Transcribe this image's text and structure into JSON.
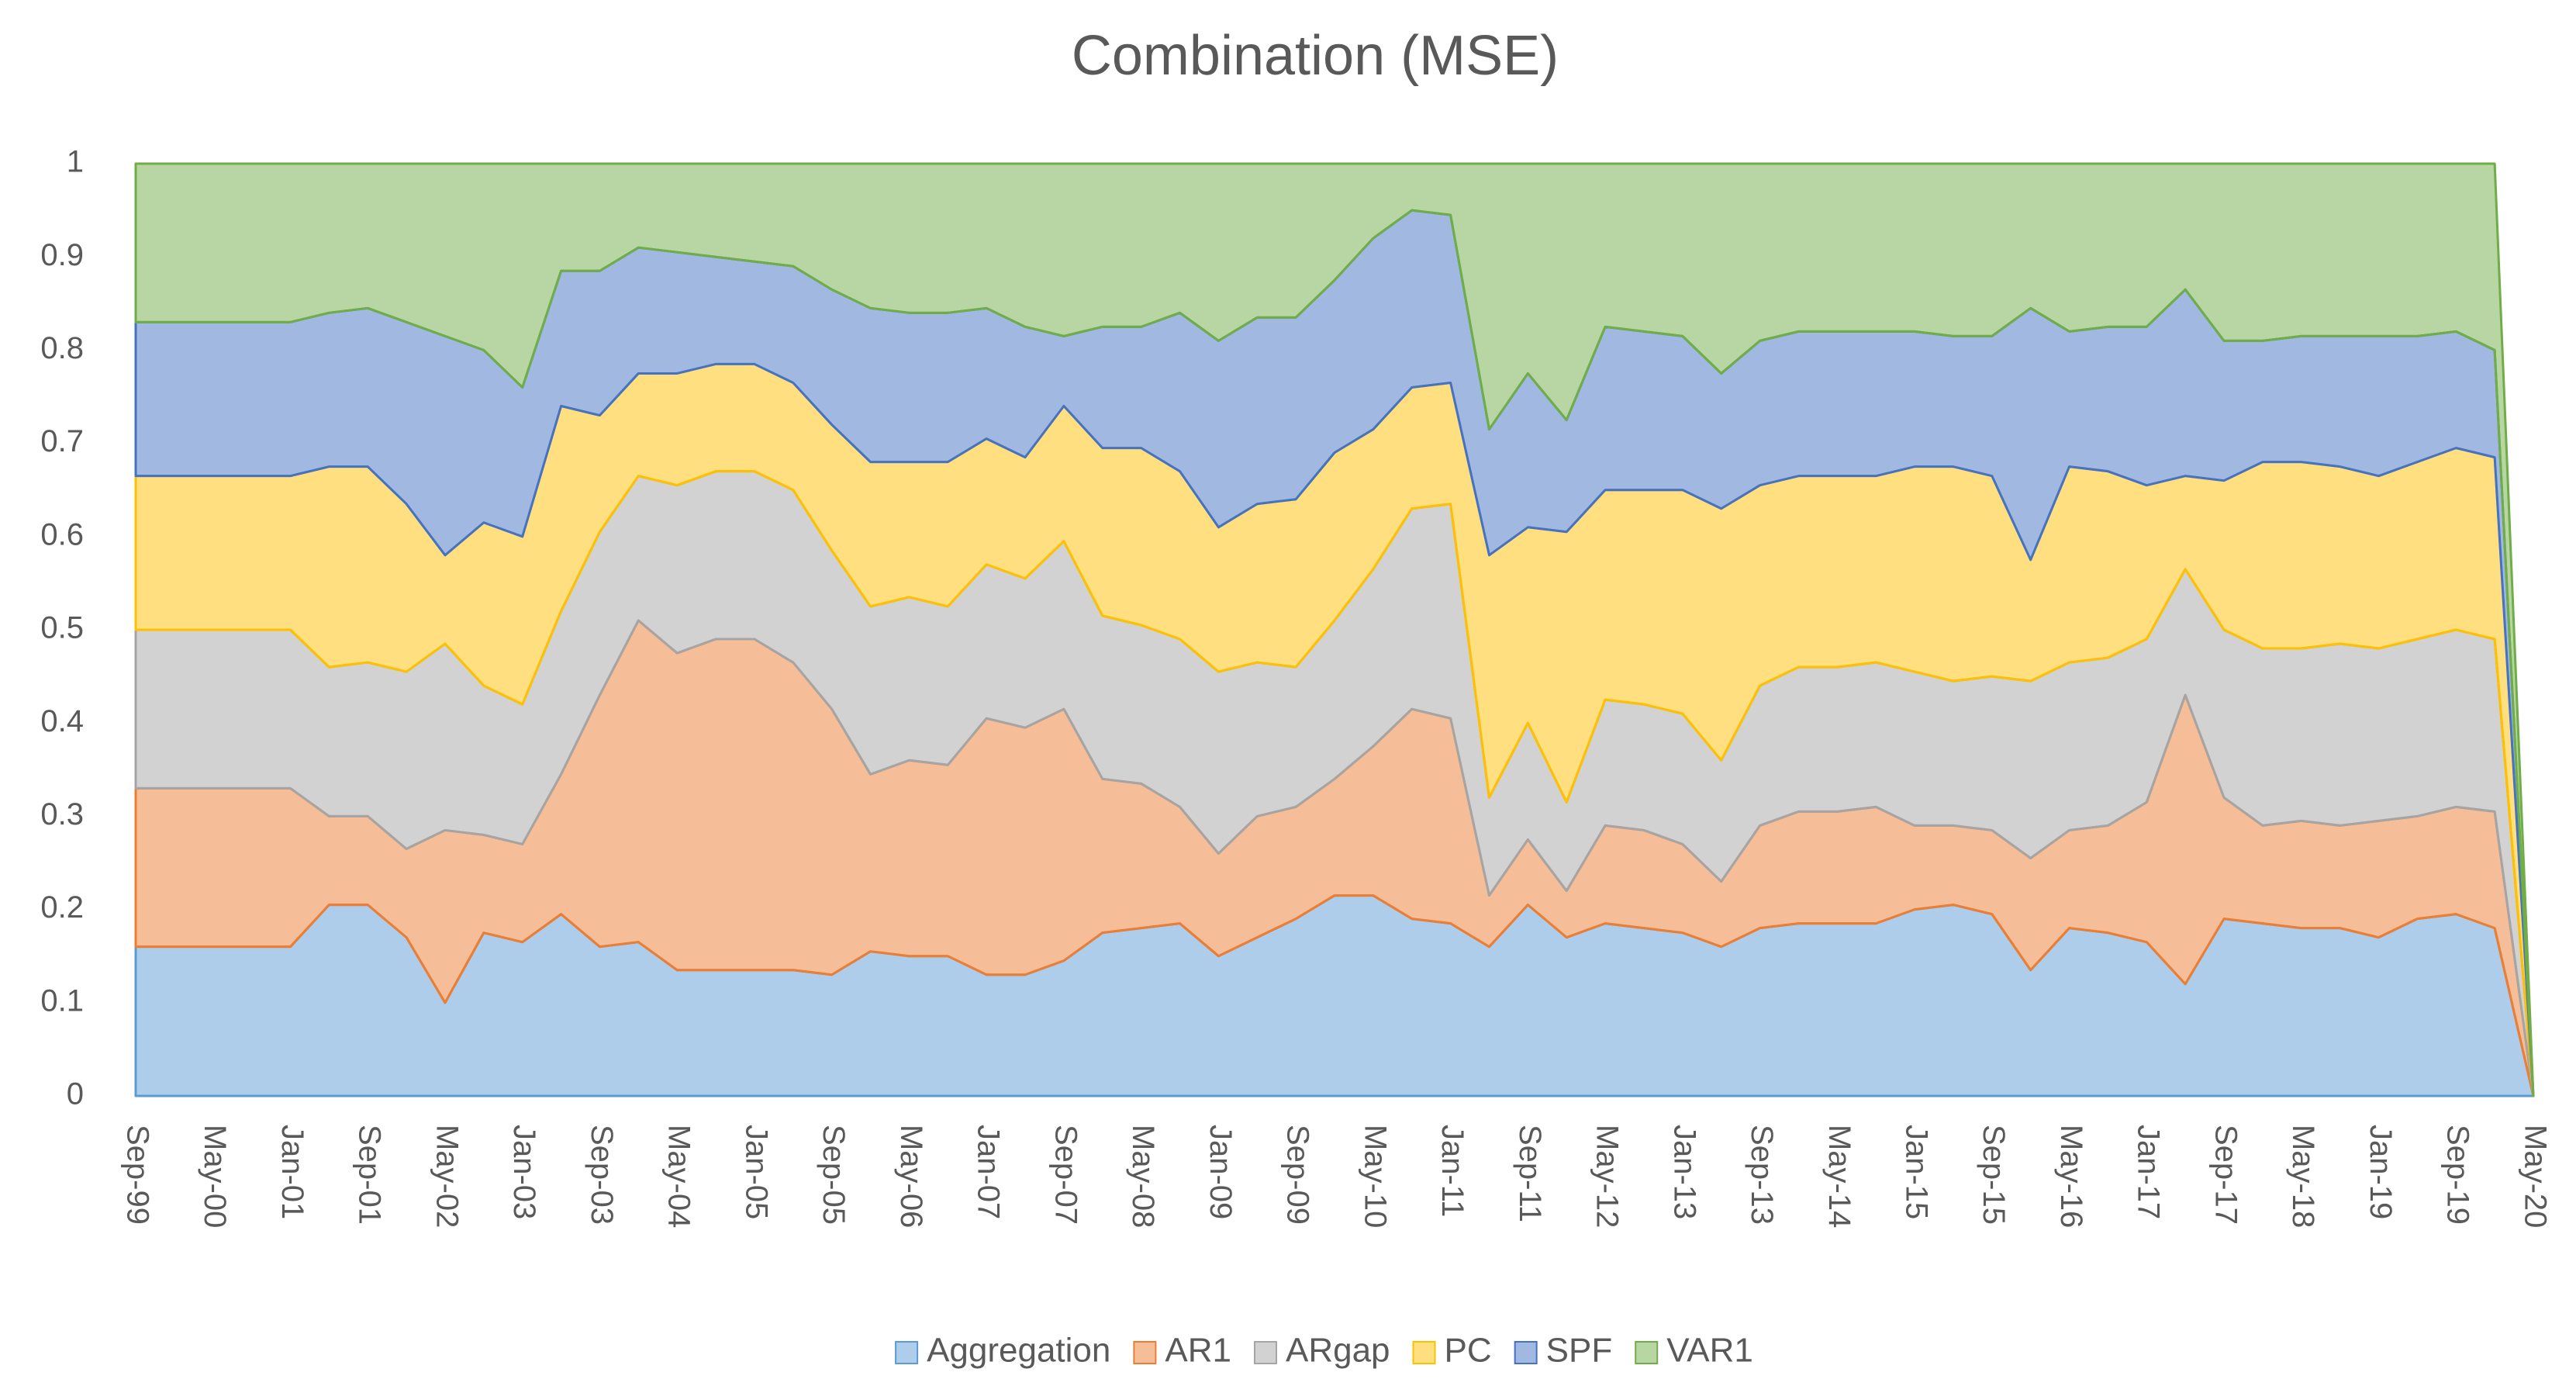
{
  "chart_data": {
    "type": "stacked_area",
    "title": "Combination (MSE)",
    "categories": [
      "Sep-99",
      null,
      "May-00",
      null,
      "Jan-01",
      null,
      "Sep-01",
      null,
      "May-02",
      null,
      "Jan-03",
      null,
      "Sep-03",
      null,
      "May-04",
      null,
      "Jan-05",
      null,
      "Sep-05",
      null,
      "May-06",
      null,
      "Jan-07",
      null,
      "Sep-07",
      null,
      "May-08",
      null,
      "Jan-09",
      null,
      "Sep-09",
      null,
      "May-10",
      null,
      "Jan-11",
      null,
      "Sep-11",
      null,
      "May-12",
      null,
      "Jan-13",
      null,
      "Sep-13",
      null,
      "May-14",
      null,
      "Jan-15",
      null,
      "Sep-15",
      null,
      "May-16",
      null,
      "Jan-17",
      null,
      "Sep-17",
      null,
      "May-18",
      null,
      "Jan-19",
      null,
      "Sep-19",
      null,
      "May-20"
    ],
    "series": [
      {
        "name": "Aggregation",
        "color": "#5b9bd5",
        "values": [
          0.16,
          0.16,
          0.16,
          0.16,
          0.16,
          0.205,
          0.205,
          0.17,
          0.1,
          0.175,
          0.165,
          0.195,
          0.16,
          0.165,
          0.135,
          0.135,
          0.135,
          0.135,
          0.13,
          0.155,
          0.15,
          0.15,
          0.13,
          0.13,
          0.145,
          0.175,
          0.18,
          0.185,
          0.15,
          0.17,
          0.19,
          0.215,
          0.215,
          0.19,
          0.185,
          0.16,
          0.205,
          0.17,
          0.185,
          0.18,
          0.175,
          0.16,
          0.18,
          0.185,
          0.185,
          0.185,
          0.2,
          0.205,
          0.195,
          0.135,
          0.18,
          0.175,
          0.165,
          0.12,
          0.19,
          0.185,
          0.18,
          0.18,
          0.17,
          0.19,
          0.195,
          0.18,
          0
        ]
      },
      {
        "name": "AR1",
        "color": "#ed7d31",
        "values": [
          0.17,
          0.17,
          0.17,
          0.17,
          0.17,
          0.095,
          0.095,
          0.095,
          0.185,
          0.105,
          0.105,
          0.15,
          0.27,
          0.345,
          0.34,
          0.355,
          0.355,
          0.33,
          0.285,
          0.19,
          0.21,
          0.205,
          0.275,
          0.265,
          0.27,
          0.165,
          0.155,
          0.125,
          0.11,
          0.13,
          0.12,
          0.125,
          0.16,
          0.225,
          0.22,
          0.055,
          0.07,
          0.05,
          0.105,
          0.105,
          0.095,
          0.07,
          0.11,
          0.12,
          0.12,
          0.125,
          0.09,
          0.085,
          0.09,
          0.12,
          0.105,
          0.115,
          0.15,
          0.31,
          0.13,
          0.105,
          0.115,
          0.11,
          0.125,
          0.11,
          0.115,
          0.125,
          0
        ]
      },
      {
        "name": "ARgap",
        "color": "#a5a5a5",
        "values": [
          0.17,
          0.17,
          0.17,
          0.17,
          0.17,
          0.16,
          0.165,
          0.19,
          0.2,
          0.16,
          0.15,
          0.175,
          0.175,
          0.155,
          0.18,
          0.18,
          0.18,
          0.185,
          0.17,
          0.18,
          0.175,
          0.17,
          0.165,
          0.16,
          0.18,
          0.175,
          0.17,
          0.18,
          0.195,
          0.165,
          0.15,
          0.17,
          0.19,
          0.215,
          0.23,
          0.105,
          0.125,
          0.095,
          0.135,
          0.135,
          0.14,
          0.13,
          0.15,
          0.155,
          0.155,
          0.155,
          0.165,
          0.155,
          0.165,
          0.19,
          0.18,
          0.18,
          0.175,
          0.135,
          0.18,
          0.19,
          0.185,
          0.195,
          0.185,
          0.19,
          0.19,
          0.185,
          0
        ]
      },
      {
        "name": "PC",
        "color": "#ffc000",
        "values": [
          0.165,
          0.165,
          0.165,
          0.165,
          0.165,
          0.215,
          0.21,
          0.18,
          0.095,
          0.175,
          0.18,
          0.22,
          0.125,
          0.11,
          0.12,
          0.115,
          0.115,
          0.115,
          0.135,
          0.155,
          0.145,
          0.155,
          0.135,
          0.13,
          0.145,
          0.18,
          0.19,
          0.18,
          0.155,
          0.17,
          0.18,
          0.18,
          0.15,
          0.13,
          0.13,
          0.26,
          0.21,
          0.29,
          0.225,
          0.23,
          0.24,
          0.27,
          0.215,
          0.205,
          0.205,
          0.2,
          0.22,
          0.23,
          0.215,
          0.13,
          0.21,
          0.2,
          0.165,
          0.1,
          0.16,
          0.2,
          0.2,
          0.19,
          0.185,
          0.19,
          0.195,
          0.195,
          0
        ]
      },
      {
        "name": "SPF",
        "color": "#4472c4",
        "values": [
          0.165,
          0.165,
          0.165,
          0.165,
          0.165,
          0.165,
          0.17,
          0.195,
          0.235,
          0.185,
          0.16,
          0.145,
          0.155,
          0.135,
          0.13,
          0.115,
          0.11,
          0.125,
          0.145,
          0.165,
          0.16,
          0.16,
          0.14,
          0.14,
          0.075,
          0.13,
          0.13,
          0.17,
          0.2,
          0.2,
          0.195,
          0.185,
          0.205,
          0.19,
          0.18,
          0.135,
          0.165,
          0.12,
          0.175,
          0.17,
          0.165,
          0.145,
          0.155,
          0.155,
          0.155,
          0.155,
          0.145,
          0.14,
          0.15,
          0.27,
          0.145,
          0.155,
          0.17,
          0.2,
          0.15,
          0.13,
          0.135,
          0.14,
          0.15,
          0.135,
          0.125,
          0.115,
          0
        ]
      },
      {
        "name": "VAR1",
        "color": "#70ad47",
        "values": [
          0.17,
          0.17,
          0.17,
          0.17,
          0.17,
          0.16,
          0.155,
          0.17,
          0.185,
          0.2,
          0.24,
          0.115,
          0.115,
          0.09,
          0.095,
          0.1,
          0.105,
          0.11,
          0.135,
          0.155,
          0.16,
          0.16,
          0.155,
          0.175,
          0.185,
          0.175,
          0.175,
          0.16,
          0.19,
          0.165,
          0.165,
          0.125,
          0.08,
          0.05,
          0.055,
          0.285,
          0.225,
          0.275,
          0.175,
          0.18,
          0.185,
          0.225,
          0.19,
          0.18,
          0.18,
          0.18,
          0.18,
          0.185,
          0.185,
          0.155,
          0.18,
          0.175,
          0.175,
          0.135,
          0.19,
          0.19,
          0.185,
          0.185,
          0.185,
          0.185,
          0.18,
          0.2,
          0
        ]
      }
    ],
    "ylim": [
      0,
      1
    ],
    "yticks": [
      0,
      0.1,
      0.2,
      0.3,
      0.4,
      0.5,
      0.6,
      0.7,
      0.8,
      0.9,
      1
    ],
    "grid": false,
    "legend": "bottom"
  }
}
